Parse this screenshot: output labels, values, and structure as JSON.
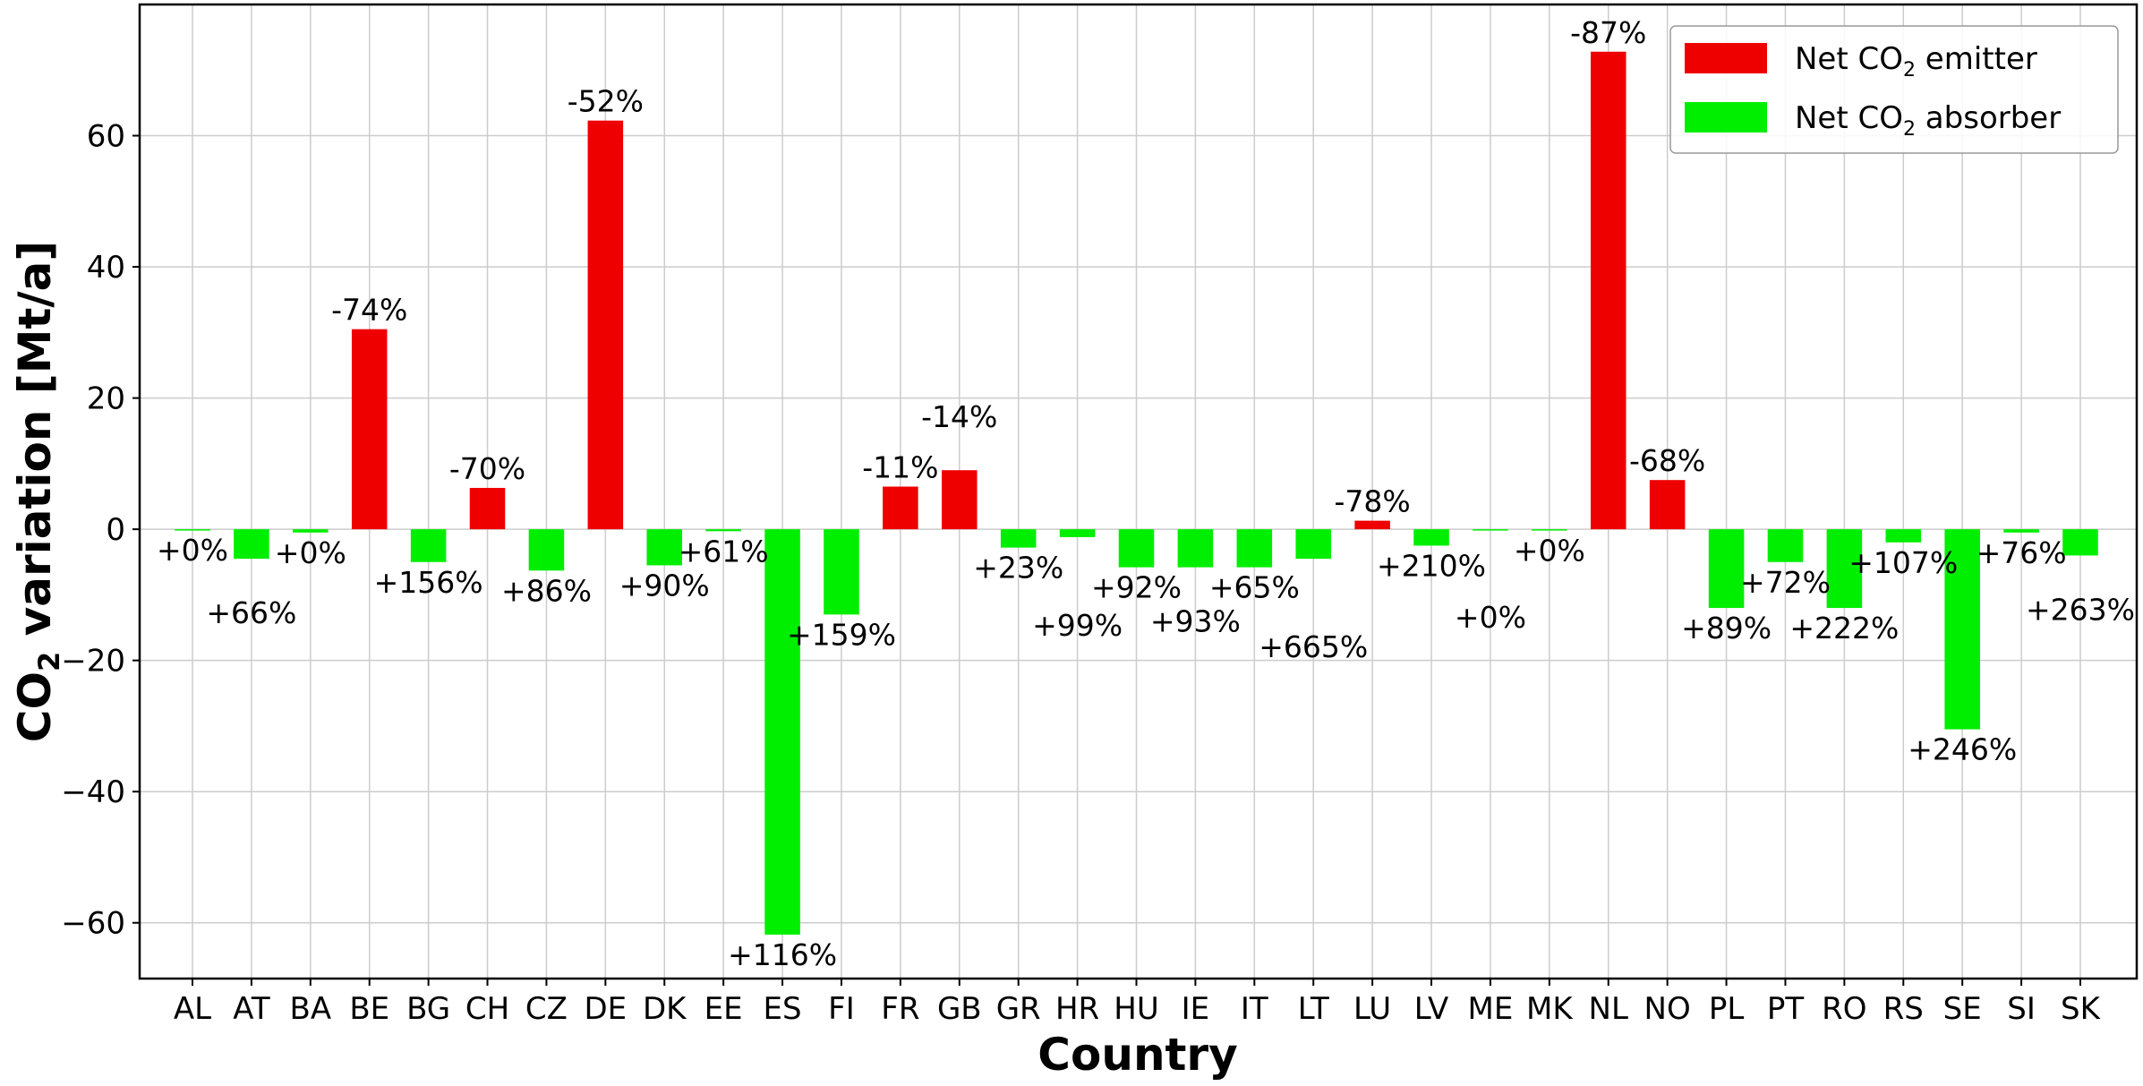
{
  "chart_data": {
    "type": "bar",
    "title": "",
    "xlabel": "Country",
    "ylabel_main": "CO",
    "ylabel_sub": "2",
    "ylabel_rest": " variation [Mt/a]",
    "ylim": [
      -68.5,
      80
    ],
    "yticks": [
      -60,
      -40,
      -20,
      0,
      20,
      40,
      60
    ],
    "ytick_labels": [
      "−60",
      "−40",
      "−20",
      "0",
      "20",
      "40",
      "60"
    ],
    "grid": true,
    "legend_position": "top-right",
    "colors": {
      "emitter": "#ee0000",
      "absorber": "#00ee00"
    },
    "legend": [
      {
        "key": "emitter",
        "main": "Net CO",
        "sub": "2",
        "rest": " emitter"
      },
      {
        "key": "absorber",
        "main": "Net CO",
        "sub": "2",
        "rest": " absorber"
      }
    ],
    "categories": [
      "AL",
      "AT",
      "BA",
      "BE",
      "BG",
      "CH",
      "CZ",
      "DE",
      "DK",
      "EE",
      "ES",
      "FI",
      "FR",
      "GB",
      "GR",
      "HR",
      "HU",
      "IE",
      "IT",
      "LT",
      "LU",
      "LV",
      "ME",
      "MK",
      "NL",
      "NO",
      "PL",
      "PT",
      "RO",
      "RS",
      "SE",
      "SI",
      "SK"
    ],
    "values": [
      -0.1,
      -4.5,
      -0.5,
      30.5,
      -5,
      6.3,
      -6.3,
      62.3,
      -5.5,
      -0.3,
      -61.8,
      -13,
      6.5,
      9,
      -2.8,
      -1.2,
      -5.8,
      -5.8,
      -5.8,
      -4.5,
      1.3,
      -2.5,
      0,
      -0.2,
      72.8,
      7.5,
      -12,
      -5,
      -12,
      -2,
      -30.5,
      -0.5,
      -4
    ],
    "data_labels": [
      "+0%",
      "+66%",
      "+0%",
      "-74%",
      "+156%",
      "-70%",
      "+86%",
      "-52%",
      "+90%",
      "+61%",
      "+116%",
      "+159%",
      "-11%",
      "-14%",
      "+23%",
      "+99%",
      "+92%",
      "+93%",
      "+65%",
      "+665%",
      "-78%",
      "+210%",
      "+0%",
      "+0%",
      "-87%",
      "-68%",
      "+89%",
      "+72%",
      "+222%",
      "+107%",
      "+246%",
      "+76%",
      "+263%"
    ]
  }
}
